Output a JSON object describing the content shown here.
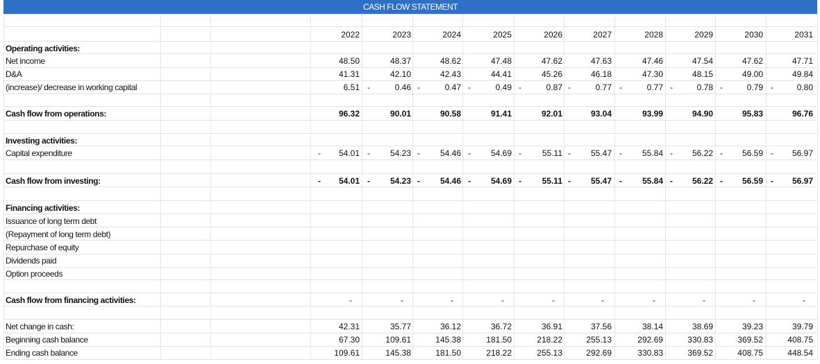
{
  "title": "CASH FLOW STATEMENT",
  "years": [
    "2022",
    "2023",
    "2024",
    "2025",
    "2026",
    "2027",
    "2028",
    "2029",
    "2030",
    "2031"
  ],
  "sections": {
    "operating_header": "Operating activities:",
    "investing_header": "Investing activities:",
    "financing_header": "Financing activities:"
  },
  "rows": {
    "net_income": {
      "label": "Net income",
      "values": [
        "48.50",
        "48.37",
        "48.62",
        "47.48",
        "47.62",
        "47.63",
        "47.46",
        "47.54",
        "47.62",
        "47.71"
      ]
    },
    "da": {
      "label": "D&A",
      "values": [
        "41.31",
        "42.10",
        "42.43",
        "44.41",
        "45.26",
        "46.18",
        "47.30",
        "48.15",
        "49.00",
        "49.84"
      ]
    },
    "wc": {
      "label": "(increase)/ decrease in working capital",
      "values": [
        "6.51",
        "0.46",
        "0.47",
        "0.49",
        "0.87",
        "0.77",
        "0.77",
        "0.78",
        "0.79",
        "0.80"
      ],
      "dash_after": [
        true,
        true,
        true,
        true,
        true,
        true,
        true,
        true,
        true,
        false
      ]
    },
    "cfo": {
      "label": "Cash flow from operations:",
      "values": [
        "96.32",
        "90.01",
        "90.58",
        "91.41",
        "92.01",
        "93.04",
        "93.99",
        "94.90",
        "95.83",
        "96.76"
      ]
    },
    "capex": {
      "label": "Capital expenditure",
      "values": [
        "54.01",
        "54.23",
        "54.46",
        "54.69",
        "55.11",
        "55.47",
        "55.84",
        "56.22",
        "56.59",
        "56.97"
      ]
    },
    "cfi": {
      "label": "Cash flow from investing:",
      "values": [
        "54.01",
        "54.23",
        "54.46",
        "54.69",
        "55.11",
        "55.47",
        "55.84",
        "56.22",
        "56.59",
        "56.97"
      ]
    },
    "issuance": {
      "label": "Issuance of long term debt"
    },
    "repayment": {
      "label": "(Repayment of long term debt)"
    },
    "repurchase": {
      "label": "Repurchase of equity"
    },
    "dividends": {
      "label": "Dividends paid"
    },
    "options": {
      "label": "Option proceeds"
    },
    "cff": {
      "label": "Cash flow from financing activities:",
      "values": [
        "-",
        "-",
        "-",
        "-",
        "-",
        "-",
        "-",
        "-",
        "-",
        "-"
      ]
    },
    "net_change": {
      "label": "Net change in cash:",
      "values": [
        "42.31",
        "35.77",
        "36.12",
        "36.72",
        "36.91",
        "37.56",
        "38.14",
        "38.69",
        "39.23",
        "39.79"
      ]
    },
    "beginning": {
      "label": "Beginning cash balance",
      "values": [
        "67.30",
        "109.61",
        "145.38",
        "181.50",
        "218.22",
        "255.13",
        "292.69",
        "330.83",
        "369.52",
        "408.75"
      ]
    },
    "ending": {
      "label": "Ending cash balance",
      "values": [
        "109.61",
        "145.38",
        "181.50",
        "218.22",
        "255.13",
        "292.69",
        "330.83",
        "369.52",
        "408.75",
        "448.54"
      ]
    }
  },
  "colors": {
    "header_bg": "#2f6fc8",
    "header_text": "#ffffff",
    "grid": "#e2e2e2"
  }
}
